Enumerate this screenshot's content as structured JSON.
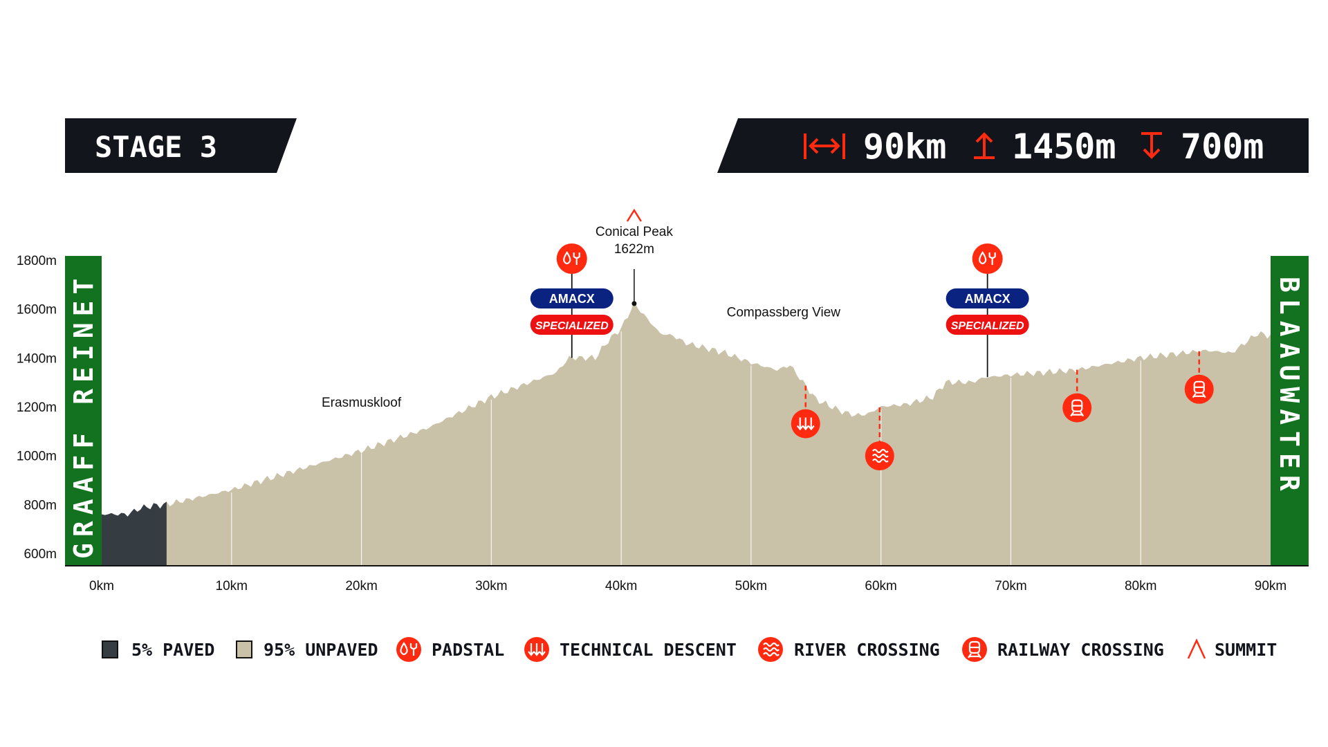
{
  "header": {
    "stage_label": "STAGE 3",
    "distance": "90km",
    "ascent": "1450m",
    "descent": "700m",
    "distance_icon": "distance-arrows-icon",
    "ascent_icon": "arrow-up-icon",
    "descent_icon": "arrow-down-icon"
  },
  "start_label": "GRAAFF REINET",
  "finish_label": "BLAAUWATER",
  "colors": {
    "dark": "#12151c",
    "paved": "#363d42",
    "unpaved": "#c9c1a8",
    "green": "#13721f",
    "accent": "#ff2a0f",
    "navy": "#0b2380"
  },
  "chart_data": {
    "type": "area",
    "xlabel": "",
    "ylabel": "",
    "xlim": [
      0,
      90
    ],
    "ylim": [
      550,
      1800
    ],
    "x_ticks": [
      "0km",
      "10km",
      "20km",
      "30km",
      "40km",
      "50km",
      "60km",
      "70km",
      "80km",
      "90km"
    ],
    "x_tick_values": [
      0,
      10,
      20,
      30,
      40,
      50,
      60,
      70,
      80,
      90
    ],
    "y_ticks": [
      "600m",
      "800m",
      "1000m",
      "1200m",
      "1400m",
      "1600m",
      "1800m"
    ],
    "y_tick_values": [
      600,
      800,
      1000,
      1200,
      1400,
      1600,
      1800
    ],
    "grid": "vertical lines every 10km inside profile",
    "paved_until_km": 5,
    "profile": {
      "km": [
        0,
        2,
        3,
        4,
        5,
        10,
        15,
        20,
        25,
        30,
        33,
        35,
        36,
        38,
        39,
        40,
        41,
        42,
        43,
        44,
        45,
        48,
        50,
        52,
        53,
        54,
        55,
        57,
        58,
        59,
        60,
        62,
        64,
        65,
        67,
        68,
        70,
        75,
        80,
        85,
        87,
        89,
        90
      ],
      "elev": [
        760,
        760,
        785,
        795,
        800,
        860,
        940,
        1020,
        1110,
        1240,
        1300,
        1340,
        1400,
        1400,
        1470,
        1520,
        1622,
        1560,
        1500,
        1490,
        1460,
        1420,
        1380,
        1350,
        1370,
        1300,
        1230,
        1180,
        1165,
        1170,
        1200,
        1210,
        1240,
        1300,
        1300,
        1320,
        1330,
        1350,
        1400,
        1430,
        1420,
        1500,
        1490
      ]
    },
    "summit": {
      "km": 41,
      "name": "Conical Peak",
      "elevation_label": "1622m"
    },
    "places": [
      {
        "name": "Erasmuskloof",
        "km": 20,
        "elev": 1200
      },
      {
        "name": "Compassberg View",
        "km": 52.5,
        "elev": 1570
      }
    ],
    "padstals": [
      {
        "km": 36.2,
        "sponsor1": "AMACX",
        "sponsor2": "SPECIALIZED"
      },
      {
        "km": 68.2,
        "sponsor1": "AMACX",
        "sponsor2": "SPECIALIZED"
      }
    ],
    "technical_descents": [
      {
        "km": 54.2
      }
    ],
    "river_crossings": [
      {
        "km": 59.9
      }
    ],
    "railway_crossings": [
      {
        "km": 75.1
      },
      {
        "km": 84.5
      }
    ],
    "legend": [
      {
        "label": "5% PAVED",
        "icon": "paved-swatch"
      },
      {
        "label": "95% UNPAVED",
        "icon": "unpaved-swatch"
      },
      {
        "label": "PADSTAL",
        "icon": "padstal-icon"
      },
      {
        "label": "TECHNICAL DESCENT",
        "icon": "technical-descent-icon"
      },
      {
        "label": "RIVER CROSSING",
        "icon": "river-crossing-icon"
      },
      {
        "label": "RAILWAY CROSSING",
        "icon": "railway-crossing-icon"
      },
      {
        "label": "SUMMIT",
        "icon": "summit-icon"
      }
    ]
  }
}
